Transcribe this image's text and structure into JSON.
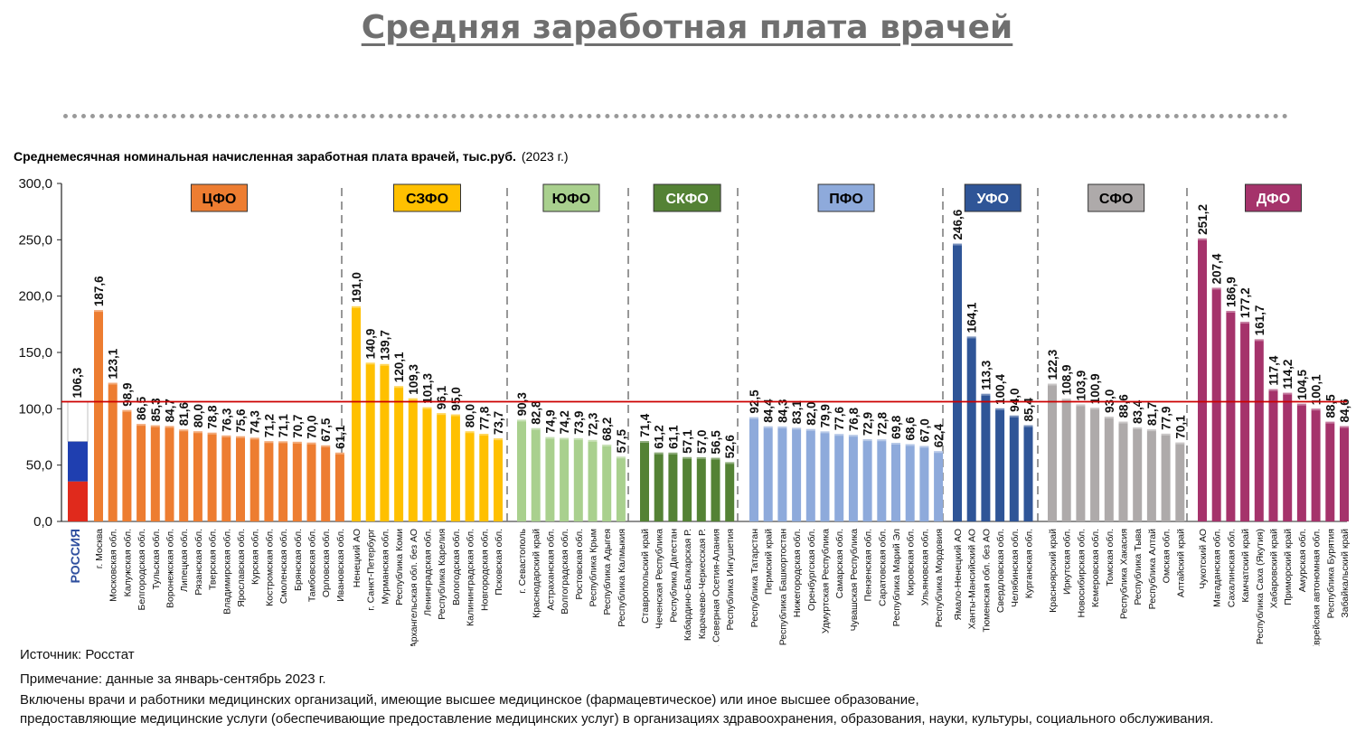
{
  "title": "Средняя заработная плата врачей",
  "subtitle": "Среднемесячная номинальная начисленная заработная плата врачей, тыс.руб.",
  "subtitle_year": "(2023 г.)",
  "source": "Источник: Росстат",
  "note": "Примечание: данные за январь-сентябрь 2023 г.",
  "note_line2": "Включены врачи и работники медицинских организаций, имеющие высшее медицинское (фармацевтическое) или иное высшее образование,",
  "note_line3": "предоставляющие медицинские услуги (обеспечивающие предоставление медицинских услуг) в организациях здравоохранения, образования, науки, культуры, социального обслуживания.",
  "chart_data": {
    "type": "bar",
    "ylim": [
      0,
      300
    ],
    "yticks": [
      "0,0",
      "50,0",
      "100,0",
      "150,0",
      "200,0",
      "250,0",
      "300,0"
    ],
    "reference_line": {
      "value": 106.3,
      "color": "#cc0000"
    },
    "russia": {
      "label": "РОССИЯ",
      "value_label": "106,3",
      "value": 106.3,
      "label_color": "#2e4e9e",
      "flag_colors": [
        "#ffffff",
        "#1f3fb0",
        "#e02a1c"
      ]
    },
    "groups": [
      {
        "name": "ЦФО",
        "color": "#ed7d31",
        "label_color": "#000000",
        "categories": [
          "г. Москва",
          "Московская обл.",
          "Калужская обл.",
          "Белгородская обл.",
          "Тульская обл.",
          "Воронежская обл.",
          "Липецкая обл.",
          "Рязанская обл.",
          "Тверская обл.",
          "Владимирская обл.",
          "Ярославская обл.",
          "Курская обл.",
          "Костромская обл.",
          "Смоленская обл.",
          "Брянская обл.",
          "Тамбовская обл.",
          "Орловская обл.",
          "Ивановская обл."
        ],
        "values": [
          187.6,
          123.1,
          98.9,
          86.5,
          85.3,
          84.7,
          81.6,
          80.0,
          78.8,
          76.3,
          75.6,
          74.3,
          71.2,
          71.1,
          70.7,
          70.0,
          67.5,
          61.1
        ],
        "value_labels": [
          "187,6",
          "123,1",
          "98,9",
          "86,5",
          "85,3",
          "84,7",
          "81,6",
          "80,0",
          "78,8",
          "76,3",
          "75,6",
          "74,3",
          "71,2",
          "71,1",
          "70,7",
          "70,0",
          "67,5",
          "61,1"
        ]
      },
      {
        "name": "СЗФО",
        "color": "#ffc000",
        "label_color": "#000000",
        "categories": [
          "Ненецкий АО",
          "г. Санкт-Петербург",
          "Мурманская обл.",
          "Республика Коми",
          "Архангельская обл. без АО",
          "Ленинградская обл.",
          "Республика Карелия",
          "Вологодская обл.",
          "Калининградская обл.",
          "Новгородская обл.",
          "Псковская обл."
        ],
        "values": [
          191.0,
          140.9,
          139.7,
          120.1,
          109.3,
          101.3,
          96.1,
          95.0,
          80.0,
          77.8,
          73.7
        ],
        "value_labels": [
          "191,0",
          "140,9",
          "139,7",
          "120,1",
          "109,3",
          "101,3",
          "96,1",
          "95,0",
          "80,0",
          "77,8",
          "73,7"
        ]
      },
      {
        "name": "ЮФО",
        "color": "#a9d08e",
        "label_color": "#000000",
        "categories": [
          "г. Севастополь",
          "Краснодарский край",
          "Астраханская обл.",
          "Волгоградская обл.",
          "Ростовская обл.",
          "Республика Крым",
          "Республика Адыгея",
          "Республика Калмыкия"
        ],
        "values": [
          90.3,
          82.8,
          74.9,
          74.2,
          73.9,
          72.3,
          68.2,
          57.5
        ],
        "value_labels": [
          "90,3",
          "82,8",
          "74,9",
          "74,2",
          "73,9",
          "72,3",
          "68,2",
          "57,5"
        ]
      },
      {
        "name": "СКФО",
        "color": "#548235",
        "label_color": "#ffffff",
        "categories": [
          "Ставропольский край",
          "Чеченская Республика",
          "Республика Дагестан",
          "Кабардино-Балкарская Р.",
          "Карачаево-Черкесская Р.",
          "Р. Северная Осетия-Алания",
          "Республика Ингушетия"
        ],
        "values": [
          71.4,
          61.2,
          61.1,
          57.1,
          57.0,
          56.5,
          52.6
        ],
        "value_labels": [
          "71,4",
          "61,2",
          "61,1",
          "57,1",
          "57,0",
          "56,5",
          "52,6"
        ]
      },
      {
        "name": "ПФО",
        "color": "#8eaadb",
        "label_color": "#000000",
        "categories": [
          "Республика Татарстан",
          "Пермский край",
          "Республика Башкортостан",
          "Нижегородская обл.",
          "Оренбургская обл.",
          "Удмуртская Республика",
          "Самарская обл.",
          "Чувашская Республика",
          "Пензенская обл.",
          "Саратовская обл.",
          "Республика Марий Эл",
          "Кировская обл.",
          "Ульяновская обл.",
          "Республика Мордовия"
        ],
        "values": [
          92.5,
          84.4,
          84.3,
          83.1,
          82.0,
          79.9,
          77.6,
          76.8,
          72.9,
          72.8,
          69.8,
          68.6,
          67.0,
          62.4
        ],
        "value_labels": [
          "92,5",
          "84,4",
          "84,3",
          "83,1",
          "82,0",
          "79,9",
          "77,6",
          "76,8",
          "72,9",
          "72,8",
          "69,8",
          "68,6",
          "67,0",
          "62,4"
        ]
      },
      {
        "name": "УФО",
        "color": "#2f5597",
        "label_color": "#ffffff",
        "categories": [
          "Ямало-Ненецкий АО",
          "Ханты-Мансийский АО",
          "Тюменская обл. без АО",
          "Свердловская обл.",
          "Челябинская обл.",
          "Курганская обл."
        ],
        "values": [
          246.6,
          164.1,
          113.3,
          100.4,
          94.0,
          85.4
        ],
        "value_labels": [
          "246,6",
          "164,1",
          "113,3",
          "100,4",
          "94,0",
          "85,4"
        ]
      },
      {
        "name": "СФО",
        "color": "#aeaaaa",
        "label_color": "#000000",
        "categories": [
          "Красноярский край",
          "Иркутская обл.",
          "Новосибирская обл.",
          "Кемеровская обл.",
          "Томская обл.",
          "Республика Хакасия",
          "Республика Тыва",
          "Республика Алтай",
          "Омская обл.",
          "Алтайский край"
        ],
        "values": [
          122.3,
          108.9,
          103.9,
          100.9,
          93.0,
          88.6,
          83.4,
          81.7,
          77.9,
          70.1
        ],
        "value_labels": [
          "122,3",
          "108,9",
          "103,9",
          "100,9",
          "93,0",
          "88,6",
          "83,4",
          "81,7",
          "77,9",
          "70,1"
        ]
      },
      {
        "name": "ДФО",
        "color": "#a5336b",
        "label_color": "#ffffff",
        "categories": [
          "Чукотский АО",
          "Магаданская обл.",
          "Сахалинская обл.",
          "Камчатский край",
          "Республика Саха (Якутия)",
          "Хабаровский край",
          "Приморский край",
          "Амурская обл.",
          "Еврейская автономная обл.",
          "Республика Бурятия",
          "Забайкальский край"
        ],
        "values": [
          251.2,
          207.4,
          186.9,
          177.2,
          161.7,
          117.4,
          114.2,
          104.5,
          100.1,
          88.5,
          84.6
        ],
        "value_labels": [
          "251,2",
          "207,4",
          "186,9",
          "177,2",
          "161,7",
          "117,4",
          "114,2",
          "104,5",
          "100,1",
          "88,5",
          "84,6"
        ]
      }
    ]
  }
}
